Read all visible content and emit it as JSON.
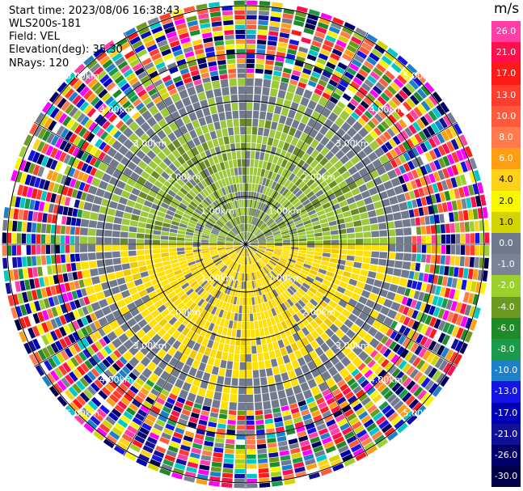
{
  "header": {
    "start_time": "Start time: 2023/08/06 16:38:43",
    "instrument": "WLS200s-181",
    "field": "Field: VEL",
    "elevation": "Elevation(deg): 35.30",
    "nrays": "NRays: 120"
  },
  "colorbar": {
    "unit": "m/s",
    "labels": [
      "26.0",
      "21.0",
      "17.0",
      "13.0",
      "10.0",
      "8.0",
      "6.0",
      "4.0",
      "2.0",
      "1.0",
      "0.0",
      "-1.0",
      "-2.0",
      "-4.0",
      "-6.0",
      "-8.0",
      "-10.0",
      "-13.0",
      "-17.0",
      "-21.0",
      "-26.0",
      "-30.0"
    ],
    "colors": [
      "#ff3fa6",
      "#ff0f4e",
      "#ff1a1a",
      "#ff3d2e",
      "#ff5a3c",
      "#ff7a4c",
      "#ff9e12",
      "#ffd21a",
      "#f8f600",
      "#d4d400",
      "#707a8c",
      "#7a8496",
      "#9cd02e",
      "#6a9a20",
      "#208a28",
      "#1a9a4a",
      "#1e80c8",
      "#1414e6",
      "#0000b4",
      "#101098",
      "#000068",
      "#000048"
    ]
  },
  "range_labels": [
    "1.00km",
    "2.00km",
    "3.00km",
    "4.00km",
    "5.00km"
  ],
  "ppi": {
    "rings": 5,
    "nrays": 120
  }
}
